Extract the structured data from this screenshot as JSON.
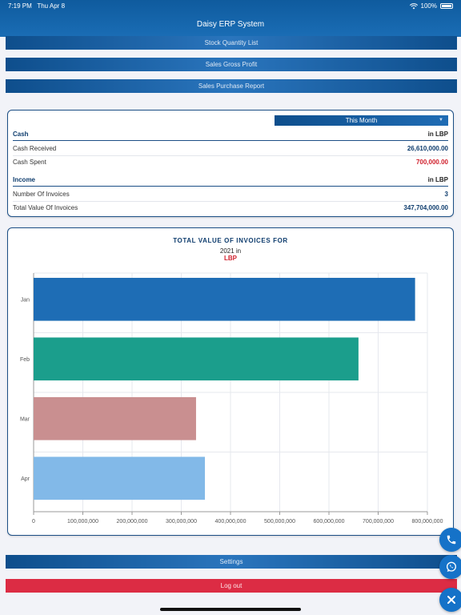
{
  "status_bar": {
    "time": "7:19 PM",
    "date": "Thu Apr 8",
    "battery": "100%"
  },
  "header": {
    "title": "Daisy ERP System"
  },
  "menu": {
    "stock_quantity_list": "Stock Quantity List",
    "sales_gross_profit": "Sales Gross Profit",
    "sales_purchase_report": "Sales Purchase Report",
    "settings": "Settings",
    "log_out": "Log out"
  },
  "summary": {
    "period_selected": "This Month",
    "cash": {
      "title": "Cash",
      "currency": "in LBP",
      "received_label": "Cash Received",
      "received_value": "26,610,000.00",
      "spent_label": "Cash Spent",
      "spent_value": "700,000.00"
    },
    "income": {
      "title": "Income",
      "currency": "in LBP",
      "invoices_label": "Number Of Invoices",
      "invoices_value": "3",
      "total_label": "Total Value Of Invoices",
      "total_value": "347,704,000.00"
    }
  },
  "chart_header": {
    "title": "TOTAL VALUE OF INVOICES FOR",
    "subtitle": "2021 in",
    "unit": "LBP"
  },
  "chart_data": {
    "type": "bar",
    "orientation": "horizontal",
    "title": "TOTAL VALUE OF INVOICES FOR",
    "subtitle": "2021 in LBP",
    "categories": [
      "Jan",
      "Feb",
      "Mar",
      "Apr"
    ],
    "values": [
      775000000,
      660000000,
      330000000,
      348000000
    ],
    "colors": [
      "#1e6db5",
      "#1b9e8c",
      "#c98f90",
      "#82b9e8"
    ],
    "xlim": [
      0,
      800000000
    ],
    "x_ticks": [
      "0",
      "100,000,000",
      "200,000,000",
      "300,000,000",
      "400,000,000",
      "500,000,000",
      "600,000,000",
      "700,000,000",
      "800,000,000"
    ],
    "grid": true,
    "legend": "none"
  },
  "icons": {
    "phone": "phone-icon",
    "whatsapp": "whatsapp-icon",
    "close": "close-icon"
  },
  "colors": {
    "primary": "#1a6db5",
    "accent_red": "#d01f2c",
    "logout": "#dc2c44"
  }
}
